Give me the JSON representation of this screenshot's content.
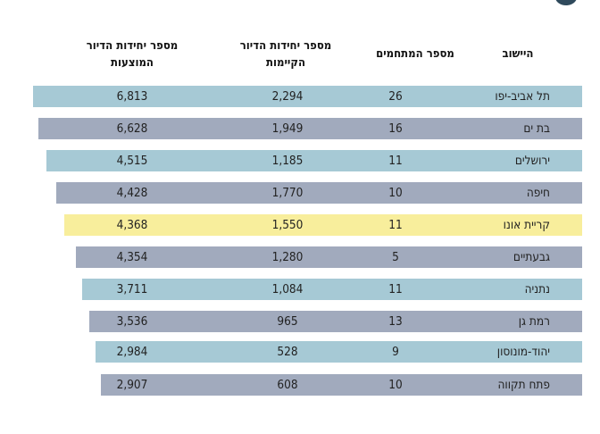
{
  "headers": {
    "city": "היישוב",
    "competitions": "מספר המתחמים",
    "existing_line1": "מספר יחידות הדיור",
    "existing_line2": "הקיימות",
    "planned_line1": "מספר יחידות הדיור",
    "planned_line2": "המוצעות"
  },
  "rows": [
    {
      "city": "תל אביב-יפו",
      "competitions": "26",
      "existing": "2,294",
      "planned": "6,813"
    },
    {
      "city": "בת ים",
      "competitions": "16",
      "existing": "1,949",
      "planned": "6,628"
    },
    {
      "city": "ירושלים",
      "competitions": "11",
      "existing": "1,185",
      "planned": "4,515"
    },
    {
      "city": "חיפה",
      "competitions": "10",
      "existing": "1,770",
      "planned": "4,428"
    },
    {
      "city": "קריית אונו",
      "competitions": "11",
      "existing": "1,550",
      "planned": "4,368"
    },
    {
      "city": "גבעתיים",
      "competitions": "5",
      "existing": "1,280",
      "planned": "4,354"
    },
    {
      "city": "נתניה",
      "competitions": "11",
      "existing": "1,084",
      "planned": "3,711"
    },
    {
      "city": "רמת גן",
      "competitions": "13",
      "existing": "965",
      "planned": "3,536"
    },
    {
      "city": "יהוד-מונוסון",
      "competitions": "9",
      "existing": "528",
      "planned": "2,984"
    },
    {
      "city": "פתח תקווה",
      "competitions": "10",
      "existing": "608",
      "planned": "2,907"
    }
  ],
  "colors": {
    "light_blue": "#a6c9d5",
    "slate": "#a1aabd",
    "highlight": "#f8ee9c"
  }
}
